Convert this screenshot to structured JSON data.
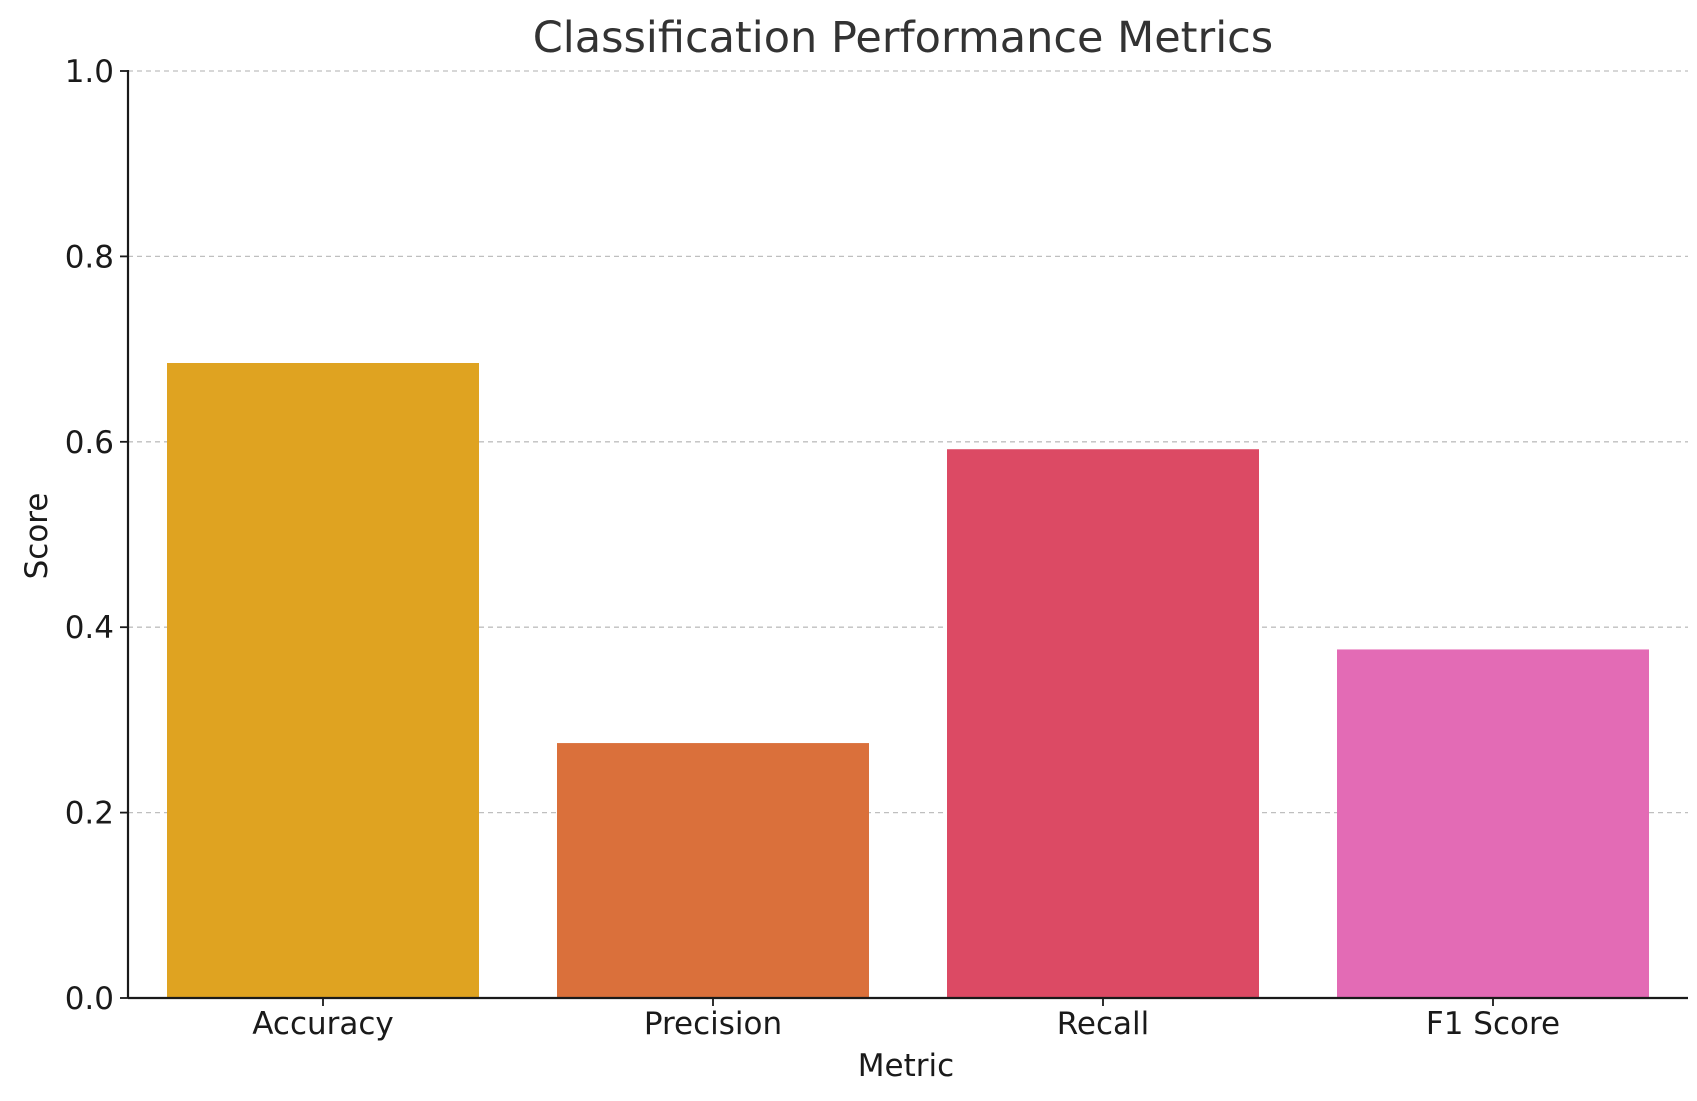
{
  "chart_data": {
    "type": "bar",
    "title": "Classification Performance Metrics",
    "xlabel": "Metric",
    "ylabel": "Score",
    "categories": [
      "Accuracy",
      "Precision",
      "Recall",
      "F1 Score"
    ],
    "values": [
      0.685,
      0.275,
      0.592,
      0.376
    ],
    "colors": [
      "#DFA321",
      "#DA703B",
      "#DC4A64",
      "#E36BB5"
    ],
    "ylim": [
      0,
      1.0
    ],
    "yticks": [
      "0.0",
      "0.2",
      "0.4",
      "0.6",
      "0.8",
      "1.0"
    ],
    "grid": "horizontal-dashed",
    "legend": "none"
  }
}
